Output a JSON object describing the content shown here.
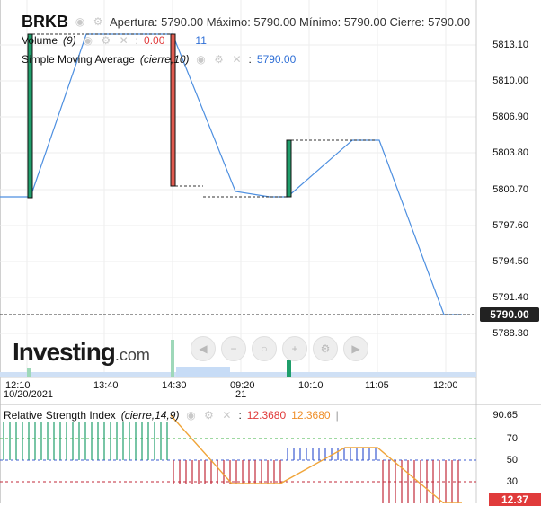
{
  "header": {
    "symbol": "BRKB",
    "ohlc": "Apertura: 5790.00 Máximo: 5790.00 Mínimo: 5790.00 Cierre: 5790.00"
  },
  "indicators": {
    "volume_name": "Volume",
    "volume_param": "(9)",
    "volume_value": "0.00",
    "volume_value2": "11",
    "sma_name": "Simple Moving Average",
    "sma_param": "(cierre,10)",
    "sma_value": "5790.00"
  },
  "price_axis": [
    "5813.10",
    "5810.00",
    "5806.90",
    "5803.80",
    "5800.70",
    "5797.60",
    "5794.50",
    "5791.40",
    "5788.30"
  ],
  "current_price": "5790.00",
  "time_axis": {
    "t1": "12:10",
    "t1_date": "10/20/2021",
    "t2": "13:40",
    "t3": "14:30",
    "t4": "09:20",
    "t4_date": "21",
    "t5": "10:10",
    "t6": "11:05",
    "t7": "12:00"
  },
  "logo": {
    "name": "Investing",
    "suffix": ".com"
  },
  "toolbar_icons": [
    "arrow-left-icon",
    "zoom-out-icon",
    "zoom-reset-icon",
    "zoom-in-icon",
    "settings-icon",
    "arrow-right-icon"
  ],
  "rsi": {
    "name": "Relative Strength Index",
    "param": "(cierre,14,9)",
    "value1": "12.3680",
    "value2": "12.3680",
    "axis": [
      "90.65",
      "70",
      "50",
      "30"
    ],
    "tag": "12.37"
  },
  "colors": {
    "up": "#1f9e6b",
    "down": "#e05a4f",
    "line": "#4d8fe0",
    "rsi_line": "#f0a53a"
  },
  "chart_data": {
    "type": "candlestick",
    "x": [
      "12:10",
      "13:40",
      "14:30",
      "09:20",
      "10:10",
      "11:05",
      "12:00"
    ],
    "close_line": [
      5800.7,
      5813.1,
      5813.1,
      5801.0,
      5800.7,
      5803.8,
      5803.8,
      5790.0
    ],
    "ylim": [
      5788.3,
      5813.1
    ],
    "rsi_levels": [
      70,
      50,
      30
    ],
    "rsi_latest": 12.37
  }
}
